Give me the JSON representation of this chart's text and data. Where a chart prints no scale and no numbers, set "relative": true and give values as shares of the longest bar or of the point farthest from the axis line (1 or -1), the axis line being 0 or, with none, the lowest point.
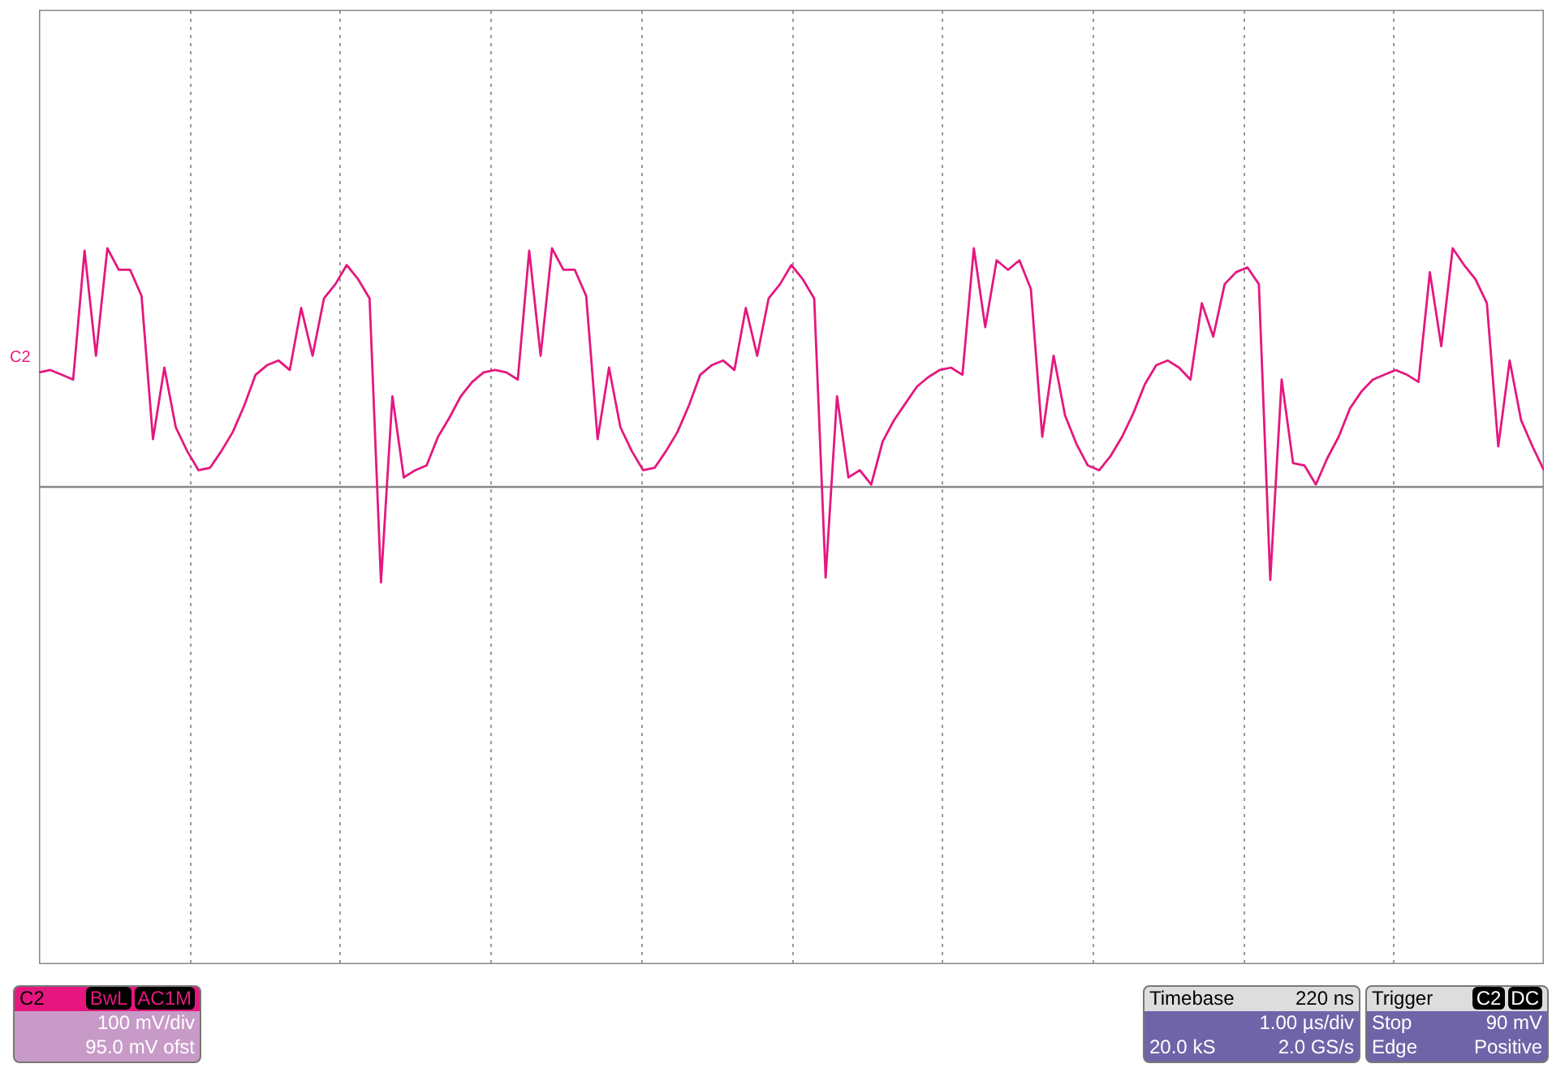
{
  "chart_data": {
    "type": "line",
    "relative": true,
    "grid": true,
    "categories": [
      null,
      null,
      null,
      null,
      null,
      null,
      null,
      null,
      null,
      null,
      null,
      null,
      null,
      null,
      null,
      null,
      null,
      null,
      null,
      null,
      null,
      null,
      null,
      null,
      null,
      null,
      null,
      null,
      null,
      null,
      null,
      null,
      null,
      null,
      null,
      null,
      null,
      null,
      null,
      null,
      null,
      null,
      null,
      null,
      null,
      null,
      null,
      null,
      null,
      null,
      null,
      null,
      null,
      null,
      null,
      null,
      null,
      null,
      null,
      null,
      null,
      null,
      null,
      null,
      null,
      null,
      null,
      null,
      null,
      null,
      null,
      null,
      null,
      null,
      null,
      null,
      null,
      null,
      null,
      null,
      null,
      null,
      null,
      null,
      null,
      null,
      null,
      null,
      null,
      null,
      null,
      null,
      null,
      null,
      null,
      null,
      null,
      null,
      null,
      null,
      null,
      null,
      null,
      null,
      null,
      null,
      null,
      null,
      null,
      null,
      null,
      null,
      null,
      null,
      null,
      null,
      null,
      null,
      null,
      null,
      null,
      null,
      null,
      null,
      null,
      null,
      null,
      null,
      null,
      null,
      null,
      null,
      null
    ],
    "series": [
      {
        "color": "#e5177f",
        "values": [
          0.48,
          0.49,
          0.47,
          0.45,
          0.99,
          0.55,
          1.0,
          0.91,
          0.91,
          0.8,
          0.2,
          0.5,
          0.25,
          0.15,
          0.07,
          0.08,
          0.15,
          0.23,
          0.34,
          0.47,
          0.51,
          0.53,
          0.49,
          0.75,
          0.55,
          0.79,
          0.85,
          0.93,
          0.87,
          0.79,
          -0.4,
          0.38,
          0.04,
          0.07,
          0.09,
          0.21,
          0.29,
          0.38,
          0.44,
          0.48,
          0.49,
          0.48,
          0.45,
          0.99,
          0.55,
          1.0,
          0.91,
          0.91,
          0.8,
          0.2,
          0.5,
          0.25,
          0.15,
          0.07,
          0.08,
          0.15,
          0.23,
          0.34,
          0.47,
          0.51,
          0.53,
          0.49,
          0.75,
          0.55,
          0.79,
          0.85,
          0.93,
          0.87,
          0.79,
          -0.38,
          0.38,
          0.04,
          0.07,
          0.01,
          0.19,
          0.28,
          0.35,
          0.42,
          0.46,
          0.49,
          0.5,
          0.47,
          1.0,
          0.67,
          0.95,
          0.91,
          0.95,
          0.83,
          0.21,
          0.55,
          0.3,
          0.18,
          0.09,
          0.07,
          0.13,
          0.21,
          0.31,
          0.43,
          0.51,
          0.53,
          0.5,
          0.45,
          0.77,
          0.63,
          0.85,
          0.9,
          0.92,
          0.85,
          -0.39,
          0.45,
          0.1,
          0.09,
          0.01,
          0.12,
          0.21,
          0.33,
          0.4,
          0.45,
          0.47,
          0.49,
          0.47,
          0.44,
          0.9,
          0.59,
          1.0,
          0.93,
          0.87,
          0.77,
          0.17,
          0.53,
          0.28,
          0.17,
          0.07
        ]
      }
    ],
    "annotations": [
      "C2",
      "C2",
      "BwL",
      "AC1M",
      "100 mV/div",
      "95.0 mV ofst",
      "Timebase",
      "220 ns",
      "1.00 µs/div",
      "20.0 kS",
      "2.0 GS/s",
      "Trigger",
      "C2",
      "DC",
      "Stop",
      "90 mV",
      "Edge",
      "Positive"
    ]
  }
}
